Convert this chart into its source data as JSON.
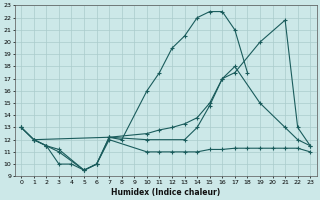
{
  "xlabel": "Humidex (Indice chaleur)",
  "bg_color": "#cce8e8",
  "grid_color": "#aacccc",
  "line_color": "#1a5c5c",
  "xlim": [
    -0.5,
    23.5
  ],
  "ylim": [
    9,
    23
  ],
  "xticks": [
    0,
    1,
    2,
    3,
    4,
    5,
    6,
    7,
    8,
    9,
    10,
    11,
    12,
    13,
    14,
    15,
    16,
    17,
    18,
    19,
    20,
    21,
    22,
    23
  ],
  "yticks": [
    9,
    10,
    11,
    12,
    13,
    14,
    15,
    16,
    17,
    18,
    19,
    20,
    21,
    22,
    23
  ],
  "curve1_x": [
    0,
    1,
    2,
    3,
    4,
    5,
    6,
    7,
    8,
    10,
    11,
    12,
    13,
    14,
    15,
    16,
    17,
    18
  ],
  "curve1_y": [
    13,
    12,
    11.5,
    10,
    10,
    9.5,
    10,
    12.2,
    12.0,
    16.0,
    17.5,
    19.5,
    20.5,
    22.0,
    22.5,
    22.5,
    21.0,
    17.5
  ],
  "curve2_x": [
    1,
    2,
    3,
    5,
    6,
    7,
    10,
    11,
    12,
    13,
    14,
    15,
    16,
    17,
    18,
    19,
    20,
    21,
    22,
    23
  ],
  "curve2_y": [
    12,
    11.5,
    11.2,
    9.5,
    10.0,
    12.0,
    11.0,
    11.0,
    11.0,
    11.0,
    11.0,
    11.2,
    11.2,
    11.3,
    11.3,
    11.3,
    11.3,
    11.3,
    11.3,
    11.0
  ],
  "curve3_x": [
    0,
    1,
    7,
    10,
    11,
    12,
    13,
    14,
    15,
    16,
    17,
    19,
    21,
    22,
    23
  ],
  "curve3_y": [
    13,
    12,
    12.2,
    12.5,
    12.8,
    13.0,
    13.3,
    13.8,
    15.0,
    17.0,
    17.5,
    20.0,
    21.8,
    13.0,
    11.5
  ],
  "curve4_x": [
    0,
    1,
    2,
    3,
    5,
    6,
    7,
    10,
    13,
    14,
    15,
    16,
    17,
    19,
    21,
    22,
    23
  ],
  "curve4_y": [
    13,
    12,
    11.5,
    11,
    9.5,
    10.0,
    12.2,
    12.0,
    12.0,
    13.0,
    14.8,
    17.0,
    18.0,
    15.0,
    13.0,
    12.0,
    11.5
  ]
}
